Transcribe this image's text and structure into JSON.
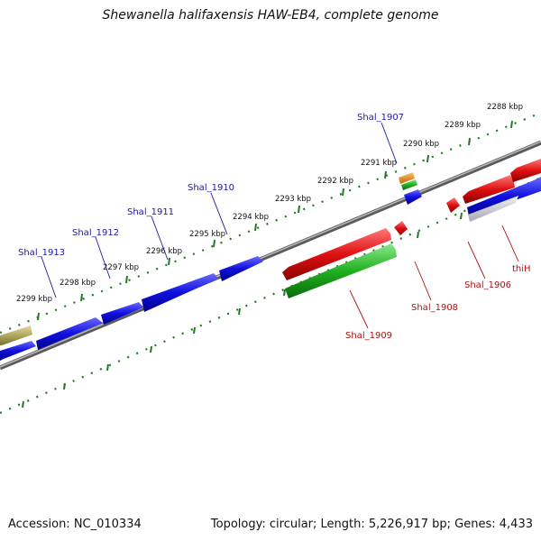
{
  "title": "Shewanella halifaxensis HAW-EB4, complete genome",
  "footer": {
    "accession": "Accession: NC_010334",
    "stats": "Topology: circular; Length: 5,226,917 bp; Genes: 4,433"
  },
  "colors": {
    "forward_gene": "#1010e0",
    "reverse_gene": "#e01010",
    "rna_gene": "#20b020",
    "other_gene": "#b0a860",
    "misc_orange": "#e88a10",
    "backbone": "#808080",
    "tick": "#207a20",
    "forward_label": "#1a1aa0",
    "reverse_label": "#b01010"
  },
  "scale_labels": [
    "2288 kbp",
    "2289 kbp",
    "2290 kbp",
    "2291 kbp",
    "2292 kbp",
    "2293 kbp",
    "2294 kbp",
    "2295 kbp",
    "2296 kbp",
    "2297 kbp",
    "2298 kbp",
    "2299 kbp"
  ],
  "gene_labels": {
    "forward": [
      "Shal_1907",
      "Shal_1910",
      "Shal_1911",
      "Shal_1912",
      "Shal_1913"
    ],
    "reverse": [
      "Shal_1909",
      "Shal_1908",
      "Shal_1906",
      "thiH"
    ]
  }
}
